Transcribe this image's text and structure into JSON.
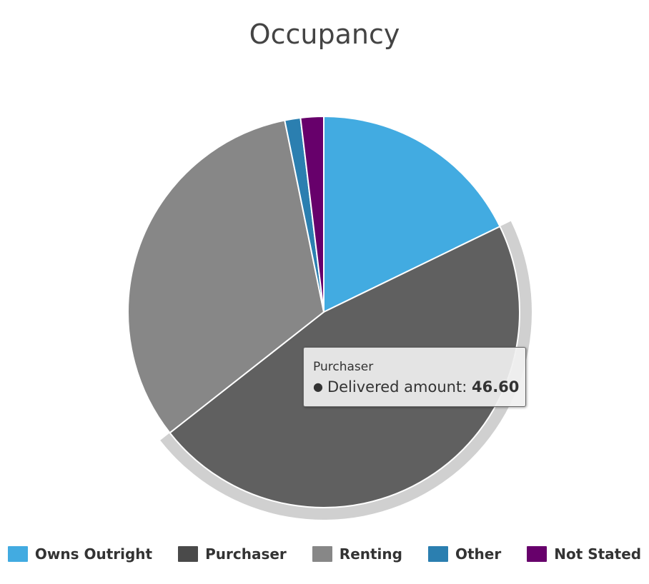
{
  "chart_data": {
    "type": "pie",
    "title": "Occupancy",
    "slices": [
      {
        "name": "Owns Outright",
        "value": 17.8,
        "color": "#42abe1"
      },
      {
        "name": "Purchaser",
        "value": 46.6,
        "color": "#606060"
      },
      {
        "name": "Renting",
        "value": 32.4,
        "color": "#878787"
      },
      {
        "name": "Other",
        "value": 1.3,
        "color": "#2b7fb0"
      },
      {
        "name": "Not Stated",
        "value": 1.9,
        "color": "#67006b"
      }
    ],
    "highlighted": "Purchaser",
    "legend_position": "bottom",
    "tooltip": {
      "series_name": "Purchaser",
      "label": "Delivered amount:",
      "value": "46.60",
      "bullet": "●"
    }
  }
}
